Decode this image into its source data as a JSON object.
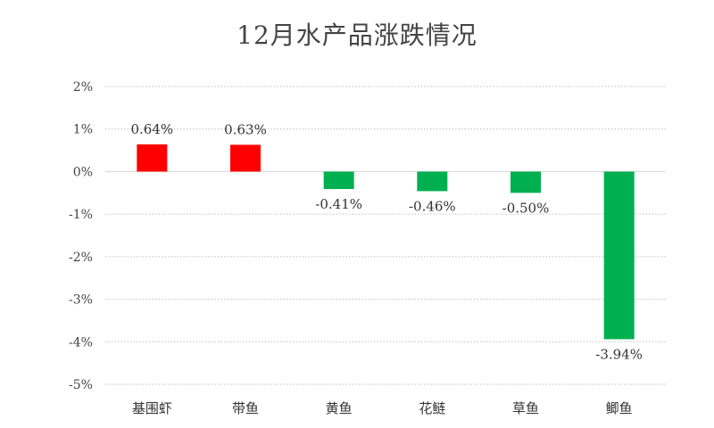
{
  "chart_data": {
    "type": "bar",
    "title": "12月水产品涨跌情况",
    "xlabel": "",
    "ylabel": "",
    "categories": [
      "基围虾",
      "带鱼",
      "黄鱼",
      "花鲢",
      "草鱼",
      "鲫鱼"
    ],
    "values": [
      0.64,
      0.63,
      -0.41,
      -0.46,
      -0.5,
      -3.94
    ],
    "data_labels": [
      "0.64%",
      "0.63%",
      "-0.41%",
      "-0.46%",
      "-0.50%",
      "-3.94%"
    ],
    "ylim": [
      -5,
      2
    ],
    "yticks": [
      2,
      1,
      0,
      -1,
      -2,
      -3,
      -4,
      -5
    ],
    "ytick_labels": [
      "2%",
      "1%",
      "0%",
      "-1%",
      "-2%",
      "-3%",
      "-4%",
      "-5%"
    ],
    "grid": true,
    "legend": "none",
    "colors": {
      "positive": "#ff0000",
      "negative": "#00b050",
      "grid": "#bfbfbf",
      "axis": "#d9d9d9"
    }
  }
}
